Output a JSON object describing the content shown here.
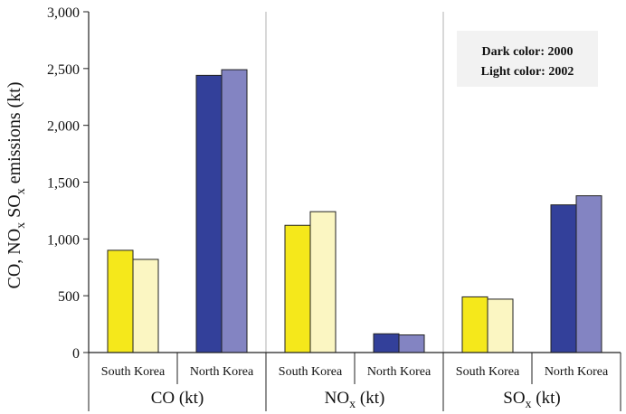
{
  "chart_data": {
    "type": "bar",
    "ylabel_parts": {
      "a": "CO, NO",
      "a_sub": "x",
      "b": " SO",
      "b_sub": "x",
      "c": " emissions (kt)"
    },
    "ylim": [
      0,
      3000
    ],
    "y_ticks": [
      "0",
      "500",
      "1,000",
      "1,500",
      "2,000",
      "2,500",
      "3,000"
    ],
    "y_tick_values": [
      0,
      500,
      1000,
      1500,
      2000,
      2500,
      3000
    ],
    "groups": [
      {
        "label_main": "CO (kt)",
        "label_sub": "",
        "label_tail": "",
        "categories": [
          {
            "name": "South Korea",
            "values": [
              900,
              820
            ],
            "colors": [
              "#f5e81b",
              "#fbf6c2"
            ]
          },
          {
            "name": "North Korea",
            "values": [
              2440,
              2490
            ],
            "colors": [
              "#33409a",
              "#8384c2"
            ]
          }
        ]
      },
      {
        "label_main": "NO",
        "label_sub": "x",
        "label_tail": " (kt)",
        "categories": [
          {
            "name": "South Korea",
            "values": [
              1120,
              1240
            ],
            "colors": [
              "#f5e81b",
              "#fbf6c2"
            ]
          },
          {
            "name": "North Korea",
            "values": [
              165,
              155
            ],
            "colors": [
              "#33409a",
              "#8384c2"
            ]
          }
        ]
      },
      {
        "label_main": "SO",
        "label_sub": "x",
        "label_tail": " (kt)",
        "categories": [
          {
            "name": "South Korea",
            "values": [
              490,
              470
            ],
            "colors": [
              "#f5e81b",
              "#fbf6c2"
            ]
          },
          {
            "name": "North Korea",
            "values": [
              1300,
              1380
            ],
            "colors": [
              "#33409a",
              "#8384c2"
            ]
          }
        ]
      }
    ],
    "legend": {
      "line1": "Dark color: 2000",
      "line2": "Light color: 2002",
      "placement": "top-right"
    },
    "grid": false
  }
}
